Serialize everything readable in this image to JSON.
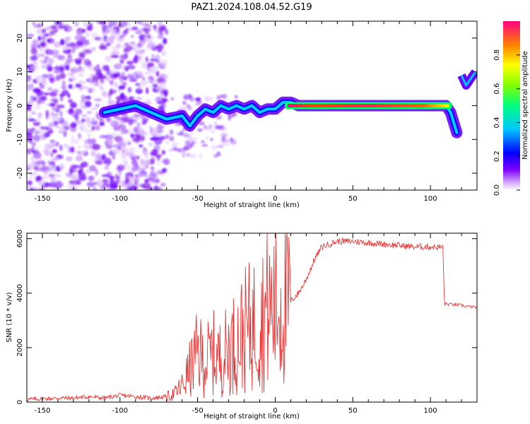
{
  "title": "PAZ1.2024.108.04.52.G19",
  "chart_data": [
    {
      "type": "heatmap",
      "xlabel": "Height of straight line (km)",
      "ylabel": "Frequency (Hz)",
      "xlim": [
        -160,
        130
      ],
      "ylim": [
        -25,
        25
      ],
      "xticks": [
        -150,
        -100,
        -50,
        0,
        50,
        100
      ],
      "yticks": [
        -20,
        -10,
        0,
        10,
        20
      ],
      "colorbar": {
        "label": "Normalized spectral amplitude",
        "range": [
          0,
          1
        ],
        "ticks": [
          0.0,
          0.2,
          0.4,
          0.6,
          0.8
        ],
        "colormap": [
          "#ffffff",
          "#d9b3ff",
          "#8000ff",
          "#0000ff",
          "#00c8ff",
          "#00ff80",
          "#80ff00",
          "#ffff00",
          "#ff8000",
          "#ff0080"
        ]
      },
      "ridge": {
        "x": [
          -110,
          -100,
          -90,
          -80,
          -70,
          -60,
          -55,
          -50,
          -45,
          -40,
          -35,
          -30,
          -25,
          -20,
          -15,
          -10,
          -5,
          0,
          5,
          10,
          15,
          50,
          100,
          110,
          113,
          117
        ],
        "frequency": [
          -2,
          -1,
          0,
          -2,
          -4,
          -3,
          -6,
          -3,
          -1,
          -2,
          0,
          -1,
          0,
          -1,
          0,
          -2,
          -1,
          -1,
          1,
          1,
          0,
          0,
          0,
          0,
          -2,
          -8
        ]
      },
      "right_branch": {
        "x": [
          120,
          123,
          126,
          129
        ],
        "frequency": [
          9,
          6,
          8,
          10
        ]
      }
    },
    {
      "type": "line",
      "xlabel": "Height of straight line (km)",
      "ylabel": "SNR (10 * v/v)",
      "xlim": [
        -160,
        130
      ],
      "ylim": [
        0,
        6200
      ],
      "xticks": [
        -150,
        -100,
        -50,
        0,
        50,
        100
      ],
      "yticks": [
        0,
        2000,
        4000,
        6000
      ],
      "color": "#ff0000",
      "series": [
        {
          "x": [
            -160,
            -150,
            -140,
            -130,
            -120,
            -110,
            -100,
            -90,
            -80,
            -70,
            -65,
            -60,
            -55,
            -50,
            -45,
            -40,
            -35,
            -30,
            -25,
            -20,
            -15,
            -10,
            -5,
            0,
            5,
            10,
            15,
            20,
            25,
            30,
            40,
            50,
            60,
            70,
            80,
            90,
            100,
            108,
            109,
            110,
            115,
            120,
            125,
            130
          ],
          "y": [
            100,
            120,
            150,
            150,
            200,
            150,
            250,
            200,
            150,
            200,
            300,
            600,
            1200,
            1800,
            1500,
            1800,
            1600,
            2000,
            2200,
            2600,
            2800,
            3000,
            3400,
            3500,
            3600,
            3700,
            4000,
            4500,
            5200,
            5700,
            5900,
            5900,
            5850,
            5800,
            5750,
            5700,
            5700,
            5680,
            3650,
            3600,
            3580,
            3550,
            3500,
            3480
          ]
        }
      ]
    }
  ]
}
